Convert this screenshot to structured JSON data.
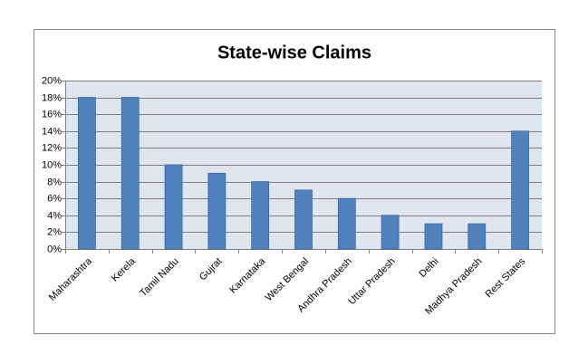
{
  "chart_data": {
    "type": "bar",
    "title": "State-wise Claims",
    "categories": [
      "Maharashtra",
      "Kerela",
      "Tamil Nadu",
      "Gujrat",
      "Karnataka",
      "West Bengal",
      "Andhra Pradesh",
      "Uttar Pradesh",
      "Delhi",
      "Madhya Pradesh",
      "Rest States"
    ],
    "values": [
      18,
      18,
      10,
      9,
      8,
      7,
      6,
      4,
      3,
      3,
      14
    ],
    "color": "#4f81bd",
    "ylim": [
      0,
      20
    ],
    "yticks": [
      {
        "value": 0,
        "label": "0%"
      },
      {
        "value": 2,
        "label": "2%"
      },
      {
        "value": 4,
        "label": "4%"
      },
      {
        "value": 6,
        "label": "6%"
      },
      {
        "value": 8,
        "label": "8%"
      },
      {
        "value": 10,
        "label": "10%"
      },
      {
        "value": 12,
        "label": "12%"
      },
      {
        "value": 14,
        "label": "14%"
      },
      {
        "value": 16,
        "label": "16%"
      },
      {
        "value": 18,
        "label": "18%"
      },
      {
        "value": 20,
        "label": "20%"
      }
    ],
    "grid": true
  }
}
